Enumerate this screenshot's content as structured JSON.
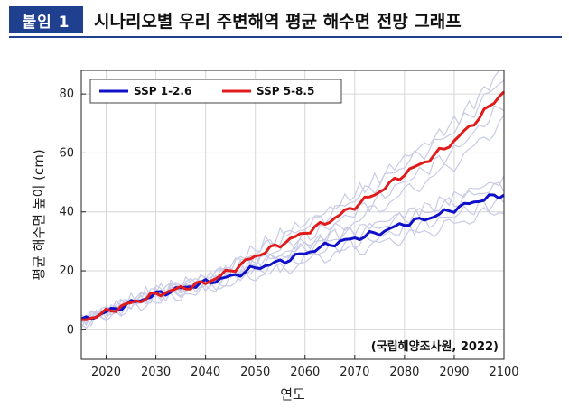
{
  "header": {
    "badge": "붙임 1",
    "title": "시나리오별 우리 주변해역 평균 해수면 전망 그래프"
  },
  "colors": {
    "accent": "#1f3f8f",
    "ssp126": "#1010c8",
    "ssp585": "#e01b1b",
    "ensemble": "#c9cbe6"
  },
  "chart_data": {
    "type": "line",
    "xlabel": "연도",
    "ylabel": "평균 해수면 높이 (cm)",
    "xlim": [
      2015,
      2100
    ],
    "ylim": [
      -10,
      88
    ],
    "xticks": [
      2020,
      2030,
      2040,
      2050,
      2060,
      2070,
      2080,
      2090,
      2100
    ],
    "yticks": [
      0,
      20,
      40,
      60,
      80
    ],
    "grid": true,
    "legend_position": "top-left",
    "annotation": "(국립해양조사원, 2022)",
    "x": [
      2015,
      2020,
      2025,
      2030,
      2035,
      2040,
      2045,
      2050,
      2055,
      2060,
      2065,
      2070,
      2075,
      2080,
      2085,
      2090,
      2095,
      2100
    ],
    "series": [
      {
        "name": "SSP 1-2.6",
        "color": "#1010c8",
        "values": [
          3,
          6,
          9,
          12,
          14,
          16,
          18,
          21,
          23,
          26,
          29,
          31,
          33,
          36,
          38,
          41,
          44,
          46
        ]
      },
      {
        "name": "SSP 5-8.5",
        "color": "#e01b1b",
        "values": [
          3,
          6,
          9,
          12,
          14,
          16,
          20,
          25,
          29,
          33,
          37,
          42,
          47,
          53,
          58,
          64,
          72,
          81
        ]
      }
    ]
  }
}
